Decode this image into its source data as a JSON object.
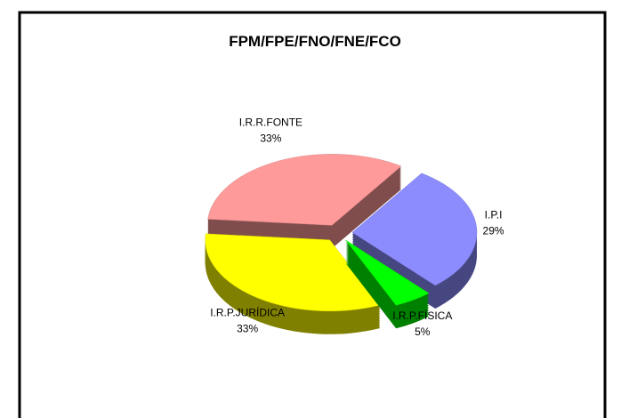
{
  "chart_data": {
    "type": "pie3d",
    "title": "FPM/FPE/FNO/FNE/FCO",
    "categories": [
      "I.R.R.FONTE",
      "I.P.I",
      "I.R.P.FÍSICA",
      "I.R.P.JURÍDICA"
    ],
    "values": [
      33,
      29,
      5,
      33
    ],
    "value_labels": [
      "33%",
      "29%",
      "5%",
      "33%"
    ],
    "colors": [
      "#ff9a9a",
      "#8c8cff",
      "#00ff00",
      "#ffff00"
    ]
  }
}
